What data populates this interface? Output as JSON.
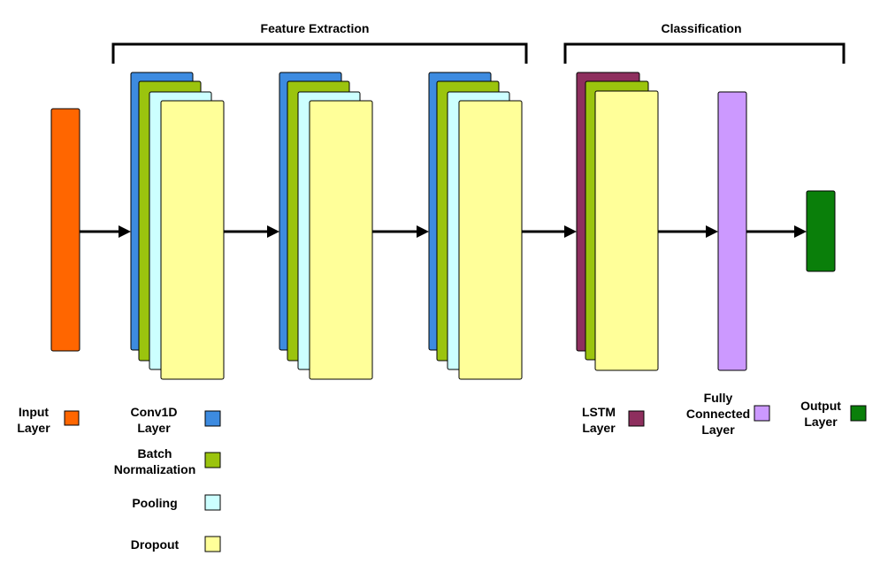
{
  "sections": {
    "feature_extraction": "Feature Extraction",
    "classification": "Classification"
  },
  "colors": {
    "input": "#FF6600",
    "conv1d": "#3D8BE0",
    "batch_norm": "#9BC40E",
    "pooling": "#CCFFFF",
    "dropout": "#FFFF99",
    "lstm": "#8E2F5E",
    "fully_connected": "#CC99FF",
    "output": "#0A7F0A"
  },
  "legend": {
    "input": [
      "Input",
      "Layer"
    ],
    "conv1d": [
      "Conv1D",
      "Layer"
    ],
    "batch_norm": [
      "Batch",
      "Normalization"
    ],
    "pooling": [
      "Pooling"
    ],
    "dropout": [
      "Dropout"
    ],
    "lstm": [
      "LSTM",
      "Layer"
    ],
    "fully_connected": [
      "Fully",
      "Connected",
      "Layer"
    ],
    "output": [
      "Output",
      "Layer"
    ]
  }
}
